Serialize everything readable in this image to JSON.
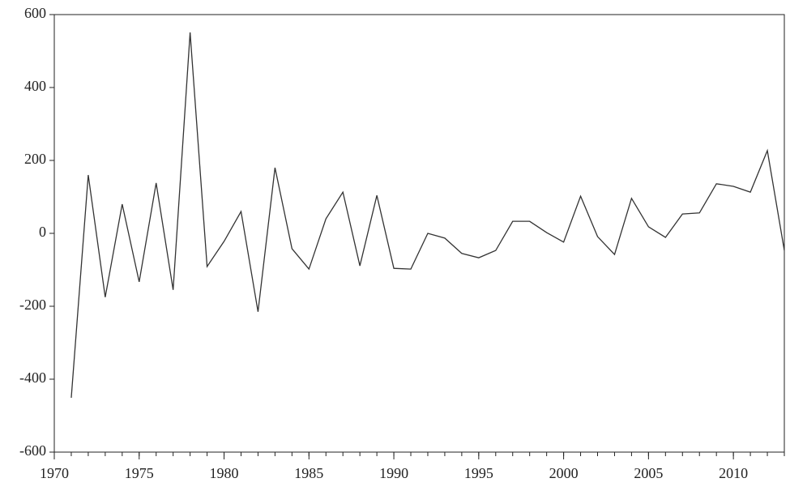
{
  "chart_data": {
    "type": "line",
    "x": [
      1971,
      1972,
      1973,
      1974,
      1975,
      1976,
      1977,
      1978,
      1979,
      1980,
      1981,
      1982,
      1983,
      1984,
      1985,
      1986,
      1987,
      1988,
      1989,
      1990,
      1991,
      1992,
      1993,
      1994,
      1995,
      1996,
      1997,
      1998,
      1999,
      2000,
      2001,
      2002,
      2003,
      2004,
      2005,
      2006,
      2007,
      2008,
      2009,
      2010,
      2011,
      2012,
      2013
    ],
    "series": [
      {
        "color": "#333333",
        "values": [
          -451,
          160,
          -175,
          80,
          -133,
          138,
          -155,
          551,
          -91,
          -22,
          60,
          -215,
          180,
          -42,
          -98,
          40,
          113,
          -89,
          104,
          -96,
          -98,
          0,
          -13,
          -55,
          -67,
          -47,
          33,
          33,
          2,
          -24,
          102,
          -9,
          -58,
          96,
          18,
          -11,
          53,
          56,
          136,
          129,
          113,
          227,
          -47
        ]
      }
    ],
    "xlim": [
      1970,
      2013
    ],
    "xticks": [
      1970,
      1975,
      1980,
      1985,
      1990,
      1995,
      2000,
      2005,
      2010
    ],
    "ylim": [
      -600,
      600
    ],
    "yticks": [
      -600,
      -400,
      -200,
      0,
      200,
      400,
      600
    ]
  }
}
